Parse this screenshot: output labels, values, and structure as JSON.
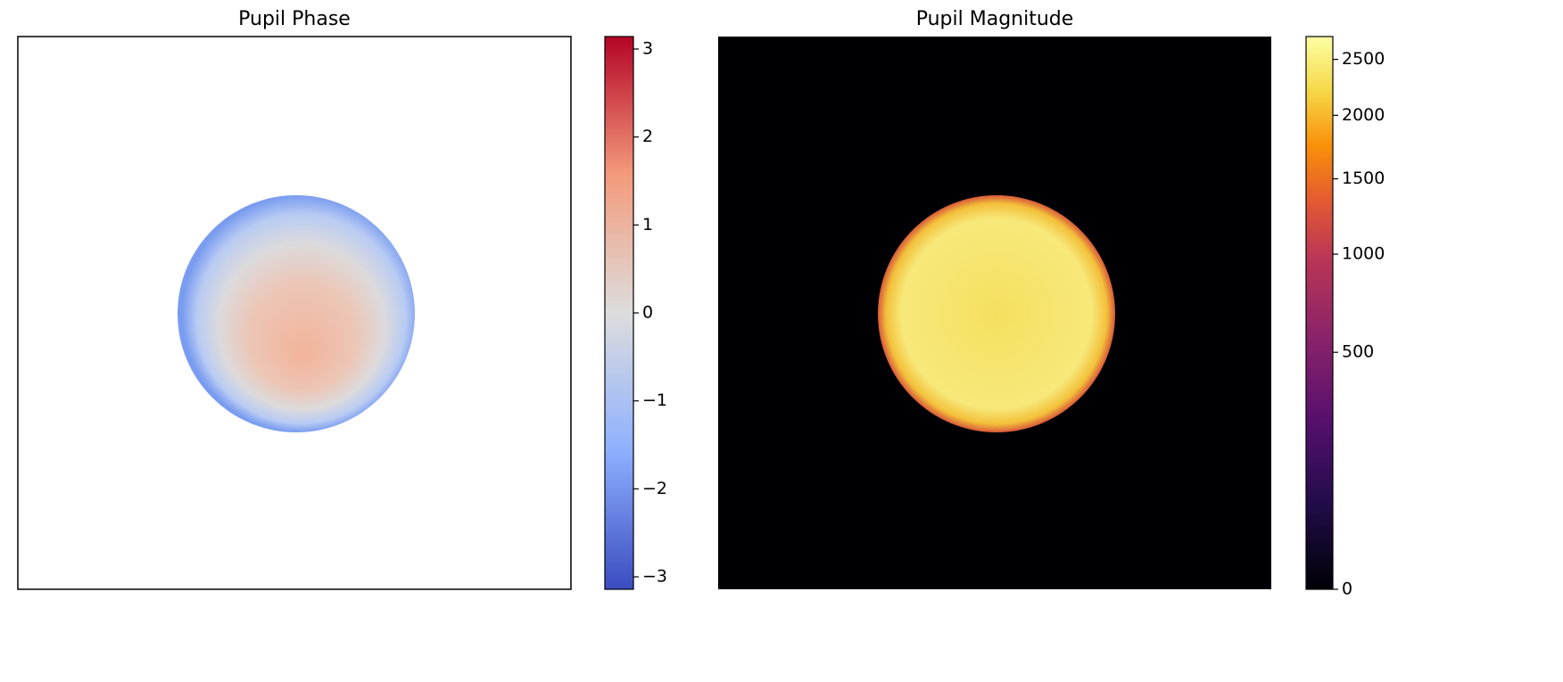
{
  "chart_data": [
    {
      "type": "image",
      "title": "Pupil Phase",
      "colormap": "coolwarm",
      "norm": "linear",
      "clim": [
        -3.14159,
        3.14159
      ],
      "colorbar_ticks": [
        {
          "value": -3,
          "label": "−3"
        },
        {
          "value": -2,
          "label": "−2"
        },
        {
          "value": -1,
          "label": "−1"
        },
        0,
        1,
        2,
        3
      ]
    },
    {
      "type": "image",
      "title": "Pupil Magnitude",
      "colormap": "inferno",
      "norm": "power",
      "gamma": 0.5,
      "clim": [
        0,
        2720
      ],
      "colorbar_ticks": [
        0,
        500,
        1000,
        1500,
        2000,
        2500
      ]
    }
  ]
}
